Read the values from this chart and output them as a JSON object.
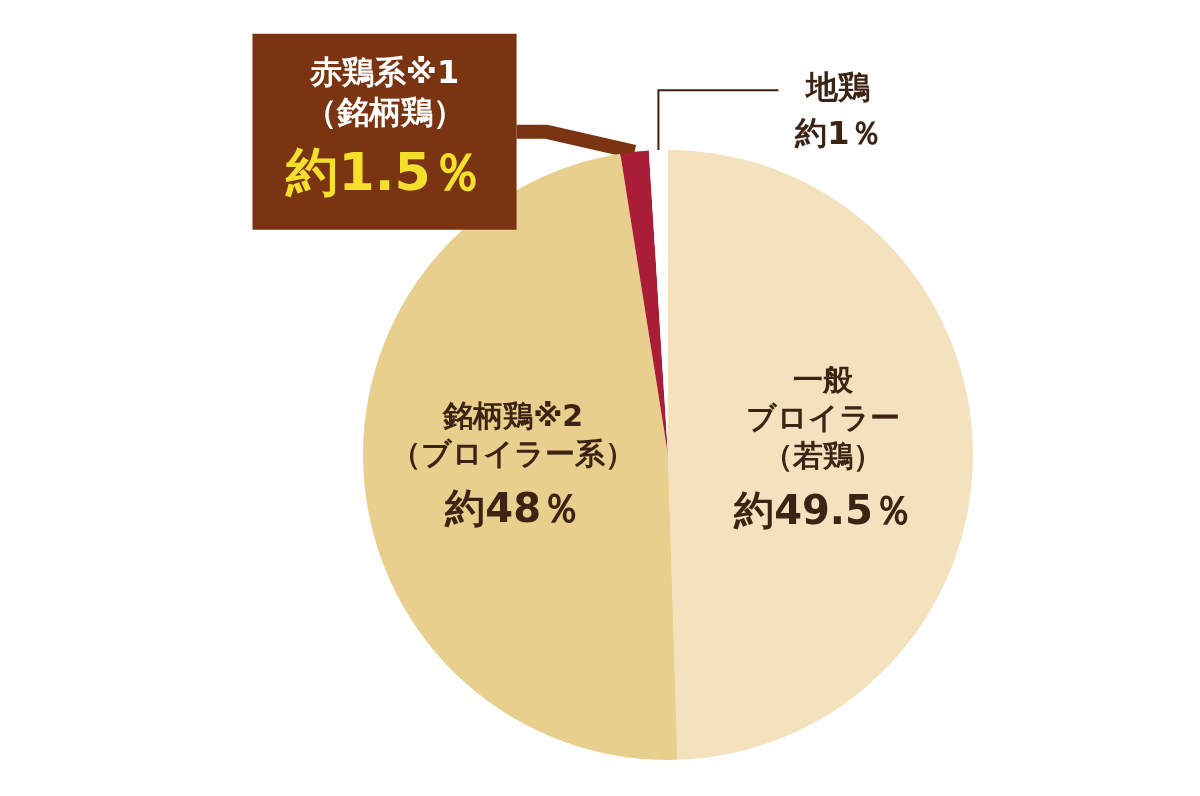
{
  "chart_data": {
    "type": "pie",
    "categories": [
      "一般ブロイラー（若鶏）",
      "銘柄鶏※2（ブロイラー系）",
      "赤鶏系※1（銘柄鶏）",
      "地鶏"
    ],
    "values": [
      49.5,
      48,
      1.5,
      1
    ],
    "colors": [
      "#f4e2bf",
      "#e9cf8e",
      "#a91d36",
      "#ffffff"
    ],
    "value_labels": [
      "約49.5％",
      "約48％",
      "約1.5％",
      "約1％"
    ]
  }
}
